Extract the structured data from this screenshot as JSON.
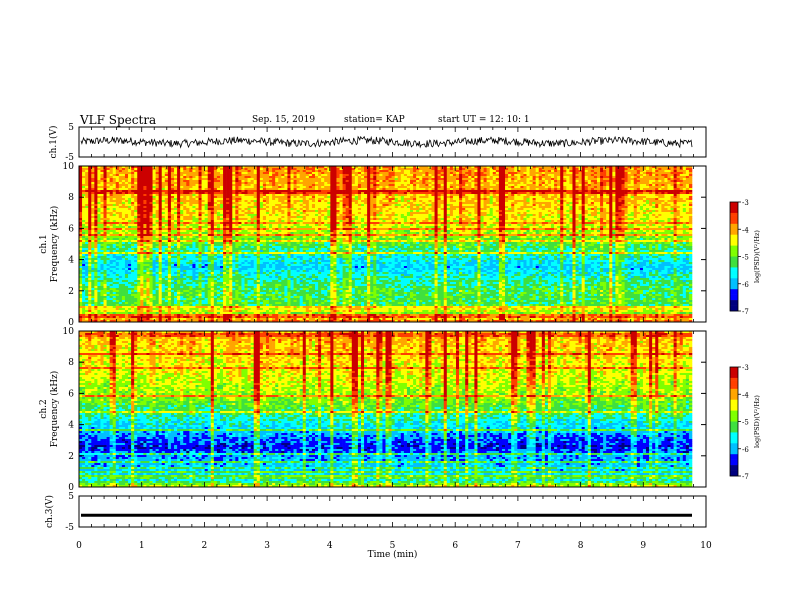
{
  "header": {
    "title": "VLF Spectra",
    "date": "Sep. 15, 2019",
    "station": "station= KAP",
    "start": "start  UT =   12: 10: 1"
  },
  "colors": {
    "colormap": [
      "#00007f",
      "#0000ff",
      "#00bfff",
      "#00ffff",
      "#3fe03f",
      "#7fff00",
      "#ffff00",
      "#ffa500",
      "#ff3f00",
      "#cc0000"
    ],
    "trace": "#000000"
  },
  "chart_data": [
    {
      "type": "line",
      "panel": "ch1-waveform",
      "ylabel": "ch.1(V)",
      "ylim": [
        -5,
        5
      ],
      "yticks": [
        "5",
        "-5"
      ],
      "xlim": [
        0,
        10
      ],
      "description_values": {
        "mean": 0,
        "amplitude_range": [
          -1.8,
          1.8
        ]
      }
    },
    {
      "type": "heatmap",
      "panel": "ch1-spectrogram",
      "ylabel_line1": "ch.1",
      "ylabel_line2": "Frequency (kHz)",
      "ylim": [
        0,
        10
      ],
      "yticks": [
        "0",
        "2",
        "4",
        "6",
        "8",
        "10"
      ],
      "xlim": [
        0,
        9.8
      ],
      "colorbar": {
        "label": "log(PSD)(V²/Hz)",
        "range": [
          -7,
          -3
        ],
        "ticks": [
          "-3",
          "-4",
          "-5",
          "-6",
          "-7"
        ]
      },
      "band_profile": [
        {
          "f": 0.0,
          "v": -3.8
        },
        {
          "f": 0.6,
          "v": -5.0
        },
        {
          "f": 1.0,
          "v": -5.3
        },
        {
          "f": 2.0,
          "v": -5.3
        },
        {
          "f": 3.0,
          "v": -5.7
        },
        {
          "f": 3.5,
          "v": -6.0
        },
        {
          "f": 4.5,
          "v": -5.6
        },
        {
          "f": 5.5,
          "v": -5.0
        },
        {
          "f": 6.5,
          "v": -4.6
        },
        {
          "f": 8.0,
          "v": -4.4
        },
        {
          "f": 10.0,
          "v": -4.2
        }
      ]
    },
    {
      "type": "heatmap",
      "panel": "ch2-spectrogram",
      "ylabel_line1": "ch.2",
      "ylabel_line2": "Frequency (kHz)",
      "ylim": [
        0,
        10
      ],
      "yticks": [
        "0",
        "2",
        "4",
        "6",
        "8",
        "10"
      ],
      "xlim": [
        0,
        9.8
      ],
      "colorbar": {
        "label": "log(PSD)(V²/Hz)",
        "range": [
          -7,
          -3
        ],
        "ticks": [
          "-3",
          "-4",
          "-5",
          "-6",
          "-7"
        ]
      },
      "band_profile": [
        {
          "f": 0.0,
          "v": -4.5
        },
        {
          "f": 0.5,
          "v": -5.8
        },
        {
          "f": 1.0,
          "v": -5.9
        },
        {
          "f": 2.0,
          "v": -6.2
        },
        {
          "f": 2.6,
          "v": -6.6
        },
        {
          "f": 3.5,
          "v": -6.1
        },
        {
          "f": 4.5,
          "v": -5.6
        },
        {
          "f": 5.5,
          "v": -5.1
        },
        {
          "f": 7.0,
          "v": -4.7
        },
        {
          "f": 8.5,
          "v": -4.5
        },
        {
          "f": 10.0,
          "v": -4.3
        }
      ]
    },
    {
      "type": "line",
      "panel": "ch3-waveform",
      "ylabel": "ch.3(V)",
      "ylim": [
        -5,
        5
      ],
      "yticks": [
        "5",
        "-5"
      ],
      "xlim": [
        0,
        10
      ],
      "constant_value": -1.2
    }
  ],
  "xaxis": {
    "label": "Time (min)",
    "ticks": [
      "0",
      "1",
      "2",
      "3",
      "4",
      "5",
      "6",
      "7",
      "8",
      "9",
      "10"
    ]
  }
}
